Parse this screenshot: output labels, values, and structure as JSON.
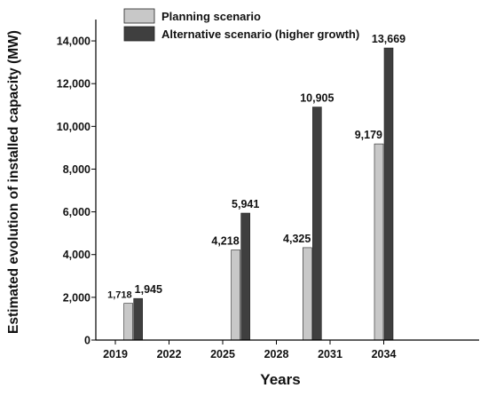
{
  "chart_data": {
    "type": "bar",
    "title": "",
    "xlabel": "Years",
    "ylabel": "Estimated evolution of installed capacity (MW)",
    "ylim": [
      0,
      15000
    ],
    "y_ticks": [
      0,
      2000,
      4000,
      6000,
      8000,
      10000,
      12000,
      14000
    ],
    "y_tick_labels": [
      "0",
      "2,000",
      "4,000",
      "6,000",
      "8,000",
      "10,000",
      "12,000",
      "14,000"
    ],
    "x_ticks": [
      "2019",
      "2022",
      "2025",
      "2028",
      "2031",
      "2034"
    ],
    "categories": [
      "2020",
      "2026",
      "2030",
      "2034"
    ],
    "grid": false,
    "legend_position": "top-left",
    "series": [
      {
        "name": "Planning scenario",
        "color": "#c8c8c8",
        "values": [
          1718,
          4218,
          4325,
          9179
        ],
        "labels": [
          "1,718",
          "4,218",
          "4,325",
          "9,179"
        ]
      },
      {
        "name": "Alternative scenario (higher growth)",
        "color": "#3f3f3f",
        "values": [
          1945,
          5941,
          10905,
          13669
        ],
        "labels": [
          "1,945",
          "5,941",
          "10,905",
          "13,669"
        ]
      }
    ]
  }
}
